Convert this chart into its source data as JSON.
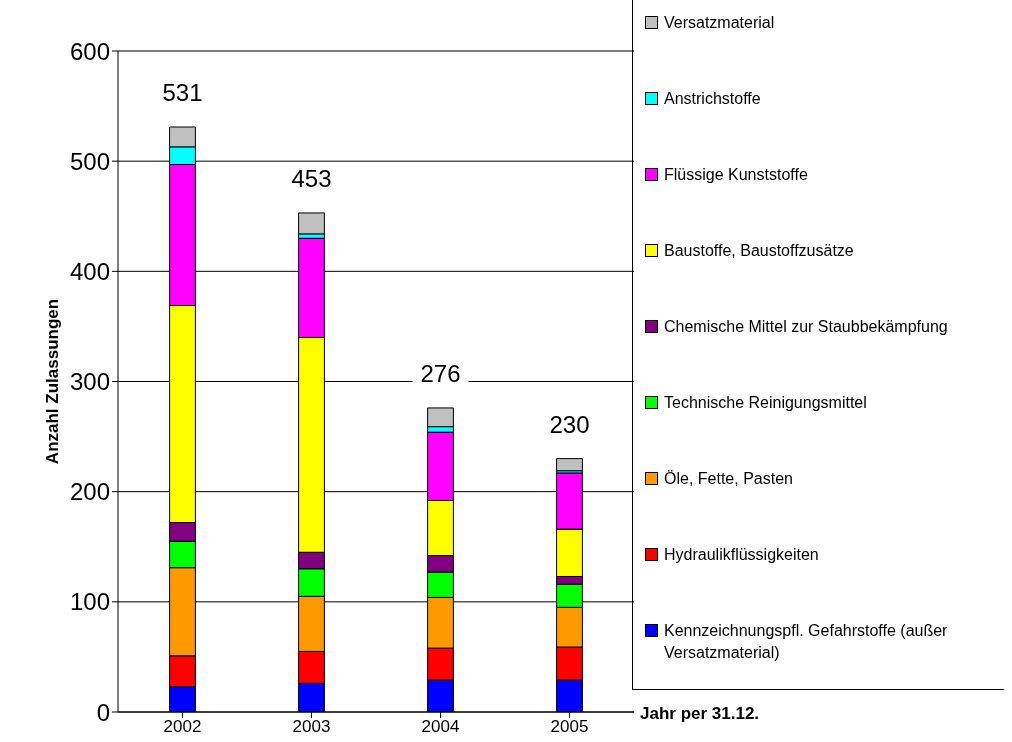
{
  "chart_data": {
    "type": "bar",
    "stacked": true,
    "xlabel": "Jahr per 31.12.",
    "ylabel": "Anzahl Zulassungen",
    "categories": [
      "2002",
      "2003",
      "2004",
      "2005"
    ],
    "ylim": [
      0,
      600
    ],
    "yticks": [
      0,
      100,
      200,
      300,
      400,
      500,
      600
    ],
    "grid": "y",
    "legend": "right",
    "totals": [
      "531",
      "453",
      "276",
      "230"
    ],
    "series": [
      {
        "name": "Kennzeichnungspfl. Gefahrstoffe (außer Versatzmaterial)",
        "color": "#0000ff",
        "values": [
          23,
          26,
          29,
          29
        ]
      },
      {
        "name": "Hydraulikflüssigkeiten",
        "color": "#ff0000",
        "values": [
          28,
          29,
          29,
          30
        ]
      },
      {
        "name": "Öle, Fette, Pasten",
        "color": "#ff9900",
        "values": [
          80,
          50,
          46,
          36
        ]
      },
      {
        "name": "Technische Reinigungsmittel",
        "color": "#00ff00",
        "values": [
          24,
          25,
          23,
          21
        ]
      },
      {
        "name": "Chemische Mittel zur Staubbekämpfung",
        "color": "#800080",
        "values": [
          17,
          15,
          15,
          7
        ]
      },
      {
        "name": "Baustoffe, Baustoffzusätze",
        "color": "#ffff00",
        "values": [
          197,
          195,
          50,
          43
        ]
      },
      {
        "name": "Flüssige Kunststoffe",
        "color": "#ff00ff",
        "values": [
          128,
          90,
          62,
          51
        ]
      },
      {
        "name": "Anstrichstoffe",
        "color": "#00ffff",
        "values": [
          16,
          4,
          5,
          2
        ]
      },
      {
        "name": "Versatzmaterial",
        "color": "#c0c0c0",
        "values": [
          18,
          19,
          17,
          11
        ]
      }
    ]
  }
}
